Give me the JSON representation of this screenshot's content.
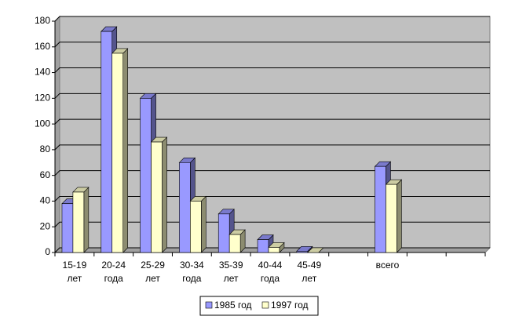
{
  "chart_data": {
    "type": "bar3d",
    "categories": [
      "15-19 лет",
      "20-24 года",
      "25-29 лет",
      "30-34 года",
      "35-39 лет",
      "40-44 года",
      "45-49 лет",
      null,
      "всего",
      null,
      null
    ],
    "series": [
      {
        "name": "1985 год",
        "color": "#9999ff",
        "values": [
          38,
          172,
          120,
          70,
          30,
          10,
          1,
          null,
          67,
          null,
          null
        ]
      },
      {
        "name": "1997 год",
        "color": "#ffffcc",
        "values": [
          47,
          155,
          86,
          40,
          14,
          4,
          0,
          null,
          53,
          null,
          null
        ]
      }
    ],
    "ylim": [
      0,
      180
    ],
    "yticks": [
      0,
      20,
      40,
      60,
      80,
      100,
      120,
      140,
      160,
      180
    ],
    "grid": true,
    "legend": "bottom"
  }
}
